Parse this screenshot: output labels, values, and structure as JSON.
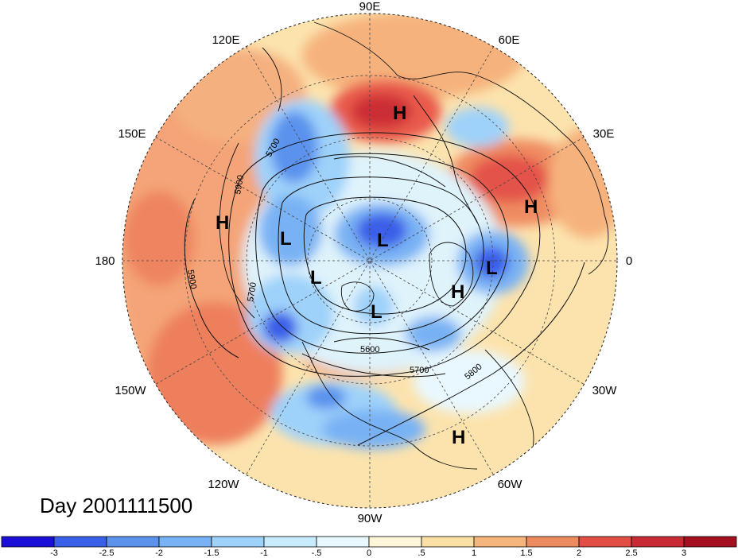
{
  "title": "Day 2001111500",
  "longitude_labels": [
    {
      "key": "90E",
      "text": "90E"
    },
    {
      "key": "60E",
      "text": "60E"
    },
    {
      "key": "30E",
      "text": "30E"
    },
    {
      "key": "0",
      "text": "0"
    },
    {
      "key": "30W",
      "text": "30W"
    },
    {
      "key": "60W",
      "text": "60W"
    },
    {
      "key": "90W",
      "text": "90W"
    },
    {
      "key": "120W",
      "text": "120W"
    },
    {
      "key": "150W",
      "text": "150W"
    },
    {
      "key": "180",
      "text": "180"
    },
    {
      "key": "150E",
      "text": "150E"
    },
    {
      "key": "120E",
      "text": "120E"
    }
  ],
  "pressure_systems": [
    {
      "type": "H",
      "label": "H",
      "region": "siberia"
    },
    {
      "type": "H",
      "label": "H",
      "region": "eastern-europe"
    },
    {
      "type": "H",
      "label": "H",
      "region": "bering-sea"
    },
    {
      "type": "H",
      "label": "H",
      "region": "greenland"
    },
    {
      "type": "H",
      "label": "H",
      "region": "caribbean"
    },
    {
      "type": "L",
      "label": "L",
      "region": "east-siberia"
    },
    {
      "type": "L",
      "label": "L",
      "region": "arctic-ocean"
    },
    {
      "type": "L",
      "label": "L",
      "region": "north-atlantic"
    },
    {
      "type": "L",
      "label": "L",
      "region": "alaska"
    },
    {
      "type": "L",
      "label": "L",
      "region": "hudson-bay"
    }
  ],
  "contour_labels": [
    "5700",
    "5900",
    "5900",
    "5700",
    "5600",
    "5700",
    "5800"
  ],
  "colorbar": {
    "ticks": [
      "-3",
      "-2.5",
      "-2",
      "-1.5",
      "-1",
      "-.5",
      "0",
      ".5",
      "1",
      "1.5",
      "2",
      "2.5",
      "3"
    ],
    "colors": [
      "#1a0fd6",
      "#3a5fe8",
      "#5a92ee",
      "#79b2f4",
      "#9fd2fa",
      "#c8ecfd",
      "#e9f8fe",
      "#fdf6d8",
      "#fbe0a5",
      "#f6b57c",
      "#ee8a60",
      "#e24e46",
      "#c92b36",
      "#a4101f"
    ]
  }
}
